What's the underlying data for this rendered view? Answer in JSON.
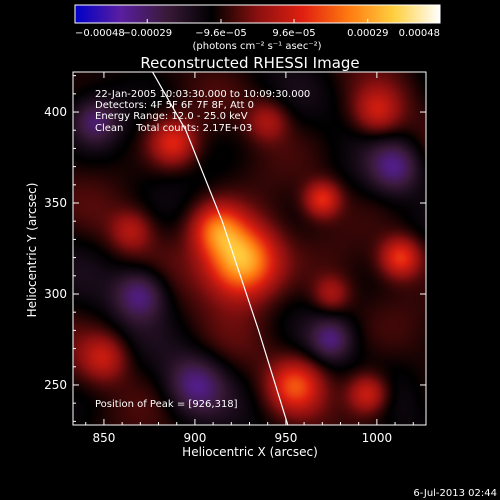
{
  "chart_data": {
    "type": "heatmap",
    "title": "Reconstructed RHESSI Image",
    "xlabel": "Heliocentric X (arcsec)",
    "ylabel": "Heliocentric Y (arcsec)",
    "xlim": [
      833,
      1027
    ],
    "ylim": [
      228,
      422
    ],
    "xticks": [
      850,
      900,
      950,
      1000
    ],
    "yticks": [
      250,
      300,
      350,
      400
    ],
    "colorbar": {
      "min": -0.00048,
      "max": 0.00048,
      "ticks": [
        -0.00048,
        -0.00029,
        -9.6e-05,
        9.6e-05,
        0.00029,
        0.00048
      ],
      "tick_labels": [
        "−0.00048",
        "−0.00029",
        "−9.6e−05",
        "9.6e−05",
        "0.00029",
        "0.00048"
      ],
      "unit_line": "(photons cm⁻² s⁻¹ asec⁻²)",
      "colors": [
        "#0000c8",
        "#5a1ea0",
        "#3a1a3a",
        "#000000",
        "#8a1010",
        "#e02010",
        "#ff7a10",
        "#ffd040",
        "#ffffff"
      ]
    },
    "info_lines": [
      "22-Jan-2005 10:03:30.000 to 10:09:30.000",
      "Detectors: 4F 5F 6F 7F 8F, Att 0",
      "Energy Range: 12.0 - 25.0 keV",
      "Clean    Total counts: 2.17E+03"
    ],
    "peak_text": "Position of Peak = [926,318]",
    "peak": {
      "x": 926,
      "y": 318,
      "value": 0.00048
    },
    "limb_points": [
      [
        875,
        425
      ],
      [
        895,
        390
      ],
      [
        915,
        340
      ],
      [
        935,
        280
      ],
      [
        952,
        225
      ]
    ],
    "sources": [
      {
        "x": 926,
        "y": 318,
        "sigma": 14,
        "amp": 1.0
      },
      {
        "x": 912,
        "y": 336,
        "sigma": 10,
        "amp": 0.55
      },
      {
        "x": 888,
        "y": 383,
        "sigma": 9,
        "amp": 0.45
      },
      {
        "x": 970,
        "y": 352,
        "sigma": 7,
        "amp": 0.5
      },
      {
        "x": 1013,
        "y": 320,
        "sigma": 8,
        "amp": 0.55
      },
      {
        "x": 995,
        "y": 245,
        "sigma": 8,
        "amp": 0.5
      },
      {
        "x": 955,
        "y": 250,
        "sigma": 10,
        "amp": 0.5
      },
      {
        "x": 850,
        "y": 265,
        "sigma": 9,
        "amp": 0.35
      },
      {
        "x": 1000,
        "y": 400,
        "sigma": 9,
        "amp": 0.35
      },
      {
        "x": 865,
        "y": 335,
        "sigma": 8,
        "amp": 0.3
      },
      {
        "x": 940,
        "y": 395,
        "sigma": 8,
        "amp": 0.3
      },
      {
        "x": 975,
        "y": 300,
        "sigma": 7,
        "amp": 0.3
      },
      {
        "x": 870,
        "y": 300,
        "sigma": 10,
        "amp": -0.45
      },
      {
        "x": 1010,
        "y": 370,
        "sigma": 10,
        "amp": -0.4
      },
      {
        "x": 845,
        "y": 395,
        "sigma": 9,
        "amp": -0.35
      },
      {
        "x": 900,
        "y": 250,
        "sigma": 11,
        "amp": -0.4
      },
      {
        "x": 975,
        "y": 275,
        "sigma": 8,
        "amp": -0.35
      }
    ]
  },
  "footer": {
    "timestamp": "6-Jul-2013 02:44"
  }
}
